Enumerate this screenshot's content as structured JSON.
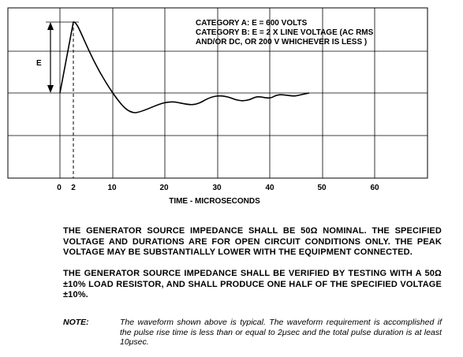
{
  "figure": {
    "annotation": [
      "CATEGORY A:  E = 600 VOLTS",
      "CATEGORY B:  E = 2 X LINE VOLTAGE (AC RMS",
      "AND/OR DC, OR 200 V WHICHEVER IS LESS )"
    ],
    "y_label": "E",
    "x_ticks": [
      "0",
      "2",
      "10",
      "20",
      "30",
      "40",
      "50",
      "60"
    ],
    "x_label": "TIME - MICROSECONDS"
  },
  "paragraphs": [
    "THE GENERATOR SOURCE IMPEDANCE SHALL BE 50Ω NOMINAL. THE SPECIFIED VOLTAGE AND DURATIONS ARE FOR OPEN CIRCUIT CONDITIONS ONLY. THE PEAK VOLTAGE MAY BE SUBSTANTIALLY LOWER WITH THE EQUIPMENT CONNECTED.",
    "THE GENERATOR SOURCE IMPEDANCE SHALL BE VERIFIED BY TESTING WITH A 50Ω ±10% LOAD RESISTOR, AND SHALL PRODUCE ONE HALF OF THE SPECIFIED VOLTAGE ±10%."
  ],
  "note": {
    "label": "NOTE:",
    "text": "The waveform shown above is typical. The waveform requirement is accomplished if the pulse rise time is less than or equal to 2μsec and the total pulse duration is at least 10μsec."
  }
}
